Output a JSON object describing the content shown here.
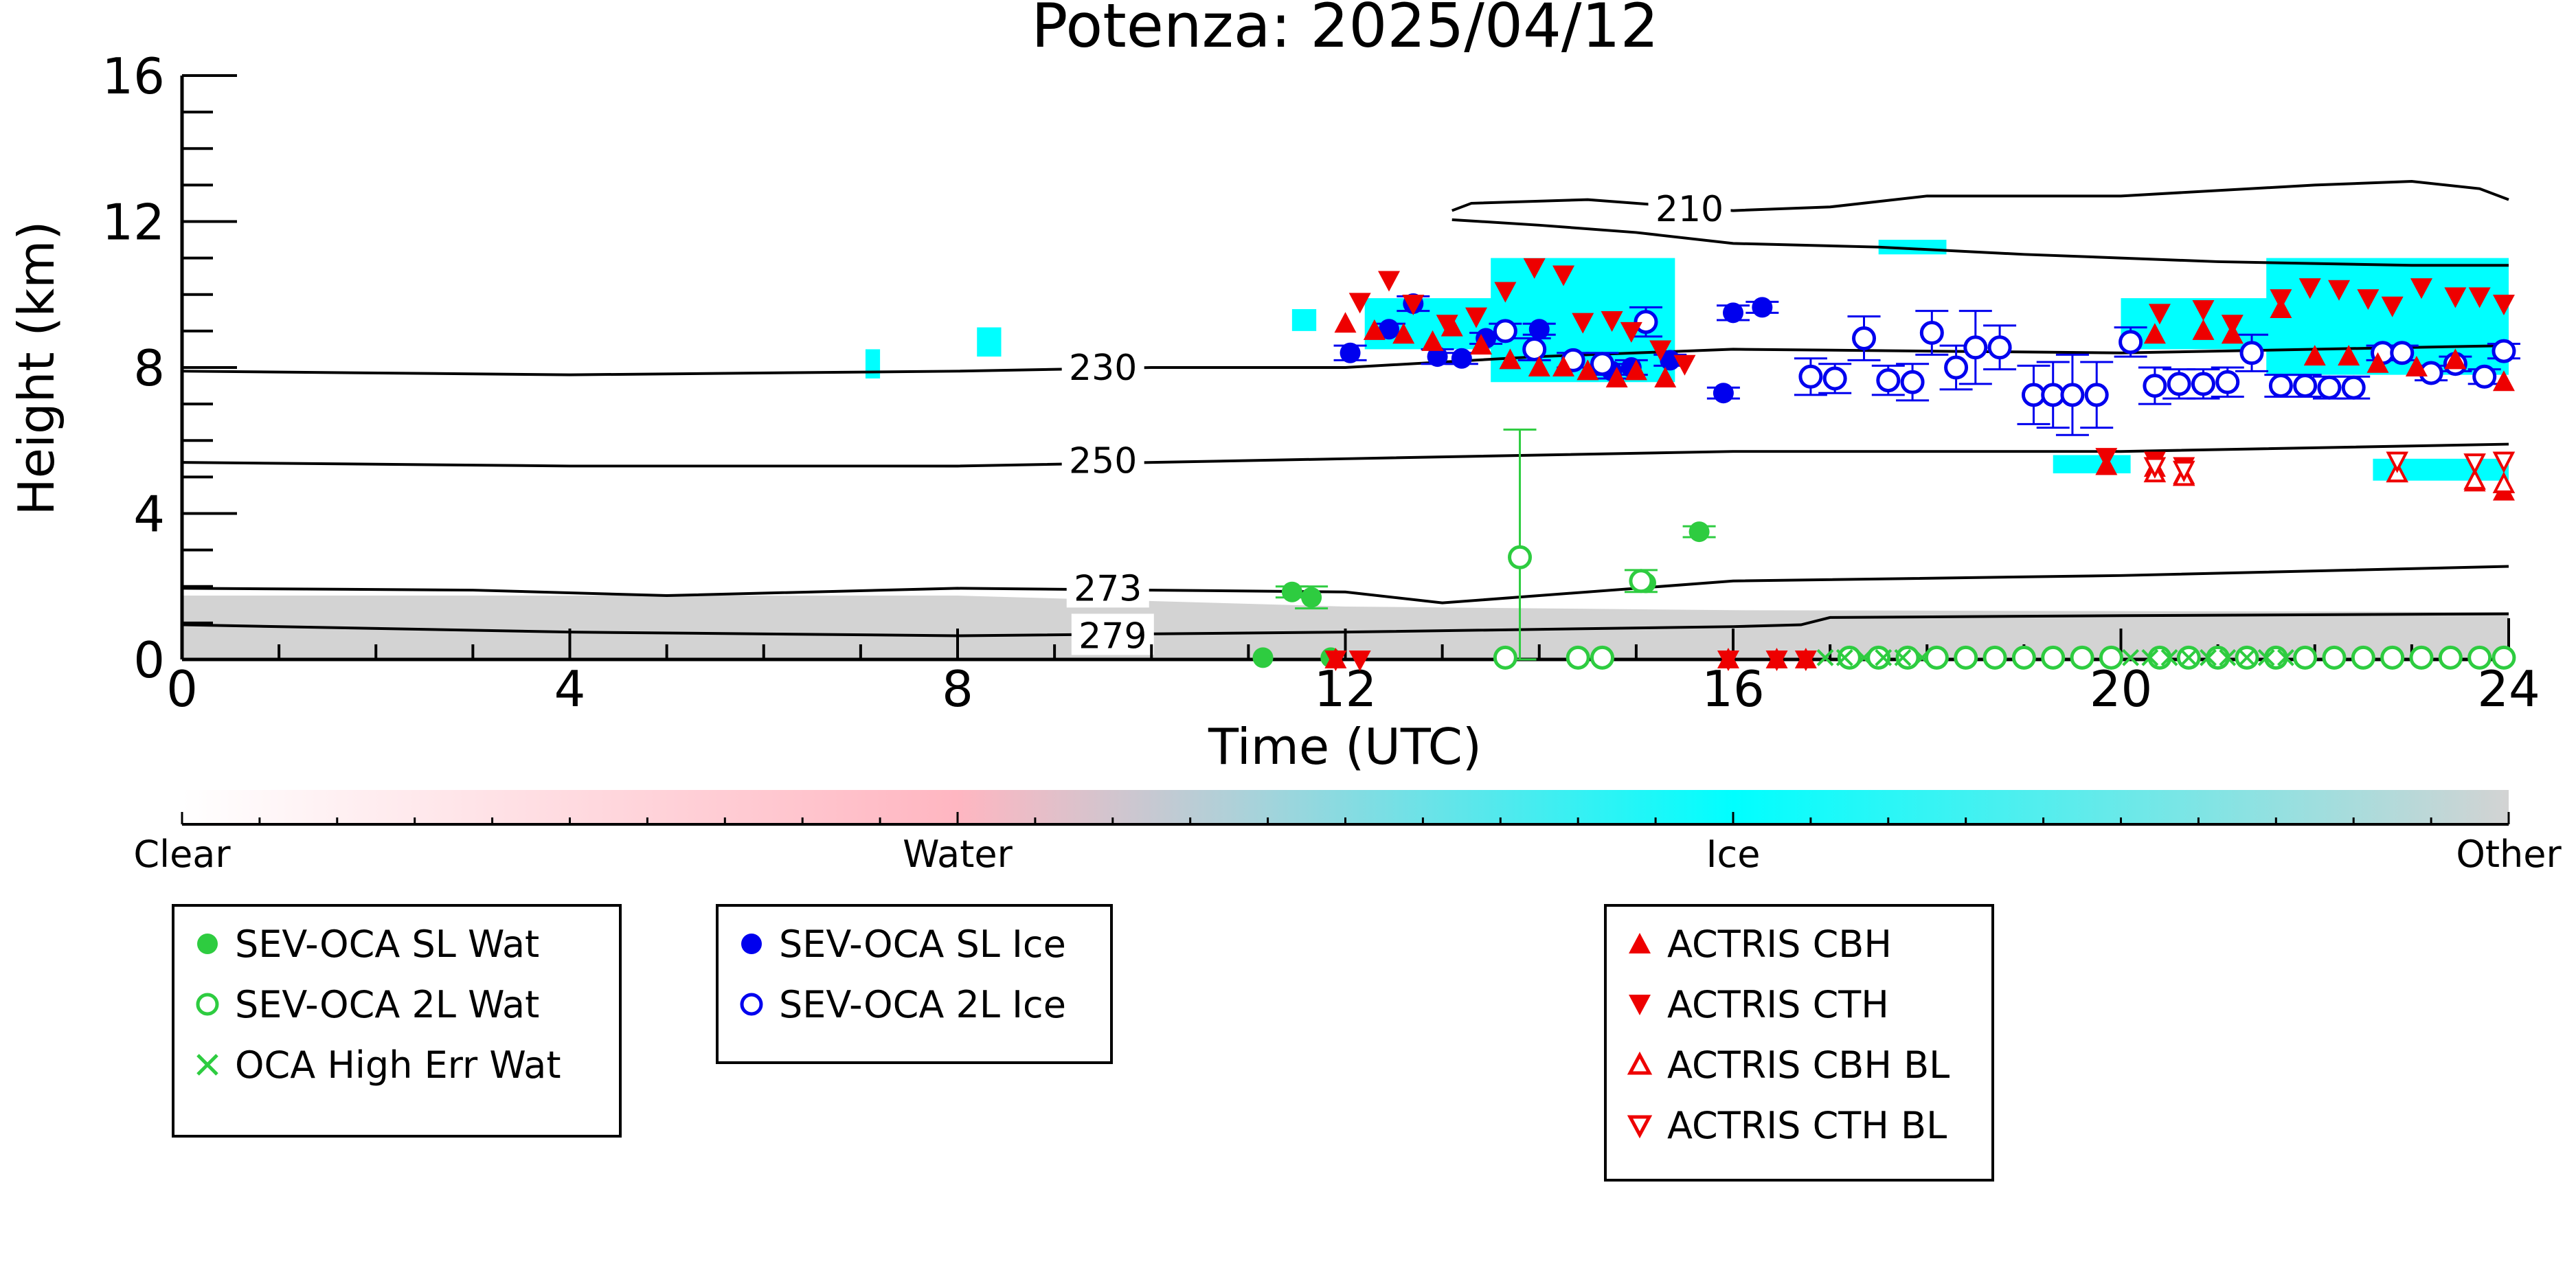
{
  "chart_data": {
    "type": "scatter",
    "title": "Potenza: 2025/04/12",
    "xlabel": "Time (UTC)",
    "ylabel": "Height (km)",
    "xlim": [
      0,
      24
    ],
    "ylim": [
      0,
      16
    ],
    "xticks": [
      0,
      4,
      8,
      12,
      16,
      20,
      24
    ],
    "yticks": [
      0,
      4,
      8,
      12,
      16
    ],
    "colorbar": {
      "labels": [
        "Clear",
        "Water",
        "Ice",
        "Other"
      ],
      "colors": [
        "#ffffff",
        "#ffb6c1",
        "#00ffff",
        "#d3d3d3"
      ]
    },
    "contours": [
      {
        "label": "210",
        "points": [
          [
            13.1,
            12.3
          ],
          [
            13.3,
            12.5
          ],
          [
            14.5,
            12.6
          ],
          [
            16,
            12.3
          ],
          [
            17,
            12.4
          ],
          [
            18,
            12.7
          ],
          [
            20,
            12.7
          ],
          [
            22,
            13.0
          ],
          [
            23,
            13.1
          ],
          [
            23.7,
            12.9
          ],
          [
            24,
            12.6
          ]
        ]
      },
      {
        "label": "210",
        "points": [
          [
            13.1,
            12.05
          ],
          [
            14,
            11.9
          ],
          [
            15,
            11.7
          ],
          [
            16,
            11.4
          ],
          [
            17.5,
            11.3
          ],
          [
            19,
            11.1
          ],
          [
            21,
            10.9
          ],
          [
            23,
            10.8
          ],
          [
            24,
            10.8
          ]
        ]
      },
      {
        "label": "230",
        "points": [
          [
            0,
            7.9
          ],
          [
            4,
            7.8
          ],
          [
            8,
            7.9
          ],
          [
            10,
            8.0
          ],
          [
            12,
            8.0
          ],
          [
            14,
            8.3
          ],
          [
            16,
            8.5
          ],
          [
            20,
            8.4
          ],
          [
            24,
            8.6
          ]
        ]
      },
      {
        "label": "250",
        "points": [
          [
            0,
            5.4
          ],
          [
            4,
            5.3
          ],
          [
            8,
            5.3
          ],
          [
            12,
            5.5
          ],
          [
            16,
            5.7
          ],
          [
            20,
            5.7
          ],
          [
            24,
            5.9
          ]
        ]
      },
      {
        "label": "273",
        "points": [
          [
            0,
            1.95
          ],
          [
            3,
            1.9
          ],
          [
            5,
            1.75
          ],
          [
            8,
            1.95
          ],
          [
            12,
            1.85
          ],
          [
            13,
            1.55
          ],
          [
            14,
            1.75
          ],
          [
            16,
            2.15
          ],
          [
            20,
            2.3
          ],
          [
            24,
            2.55
          ]
        ]
      },
      {
        "label": "279",
        "points": [
          [
            0,
            0.95
          ],
          [
            4,
            0.75
          ],
          [
            8,
            0.65
          ],
          [
            12,
            0.75
          ],
          [
            16,
            0.9
          ],
          [
            16.7,
            0.95
          ],
          [
            17,
            1.15
          ],
          [
            20,
            1.2
          ],
          [
            24,
            1.25
          ]
        ]
      }
    ],
    "series": [
      {
        "name": "SEV-OCA SL Wat",
        "color": "#2ecc40",
        "marker": "filled-circle",
        "points": [
          [
            11.45,
            1.85,
            0.15
          ],
          [
            11.65,
            1.7,
            0.3
          ],
          [
            11.85,
            0.05,
            0
          ],
          [
            11.15,
            0.05,
            0
          ],
          [
            15.1,
            2.1,
            0
          ],
          [
            15.65,
            3.5,
            0.15
          ]
        ]
      },
      {
        "name": "SEV-OCA 2L Wat",
        "color": "#2ecc40",
        "marker": "open-circle",
        "points": [
          [
            13.8,
            2.8,
            3.5
          ],
          [
            15.05,
            2.15,
            0.3
          ],
          [
            13.65,
            0.05,
            0
          ],
          [
            14.4,
            0.05,
            0
          ],
          [
            14.65,
            0.05,
            0
          ],
          [
            17.2,
            0.05,
            0
          ],
          [
            17.5,
            0.05,
            0
          ],
          [
            17.8,
            0.05,
            0
          ],
          [
            18.1,
            0.05,
            0
          ],
          [
            18.4,
            0.05,
            0
          ],
          [
            18.7,
            0.05,
            0
          ],
          [
            19.0,
            0.05,
            0
          ],
          [
            19.3,
            0.05,
            0
          ],
          [
            19.6,
            0.05,
            0
          ],
          [
            19.9,
            0.05,
            0
          ],
          [
            20.4,
            0.05,
            0
          ],
          [
            20.7,
            0.05,
            0
          ],
          [
            21.0,
            0.05,
            0
          ],
          [
            21.3,
            0.05,
            0
          ],
          [
            21.6,
            0.05,
            0
          ],
          [
            21.9,
            0.05,
            0
          ],
          [
            22.2,
            0.05,
            0
          ],
          [
            22.5,
            0.05,
            0
          ],
          [
            22.8,
            0.05,
            0
          ],
          [
            23.1,
            0.05,
            0
          ],
          [
            23.4,
            0.05,
            0
          ],
          [
            23.7,
            0.05,
            0
          ],
          [
            23.95,
            0.05,
            0
          ]
        ]
      },
      {
        "name": "OCA High Err Wat",
        "color": "#2ecc40",
        "marker": "x",
        "points": [
          [
            16.95,
            0.05
          ],
          [
            17.15,
            0.05
          ],
          [
            17.35,
            0.05
          ],
          [
            17.55,
            0.05
          ],
          [
            17.75,
            0.05
          ],
          [
            17.95,
            0.05
          ],
          [
            20.1,
            0.05
          ],
          [
            20.3,
            0.05
          ],
          [
            20.5,
            0.05
          ],
          [
            20.7,
            0.05
          ],
          [
            20.9,
            0.05
          ],
          [
            21.1,
            0.05
          ],
          [
            21.3,
            0.05
          ],
          [
            21.5,
            0.05
          ],
          [
            21.7,
            0.05
          ]
        ]
      },
      {
        "name": "SEV-OCA SL Ice",
        "color": "#0000ee",
        "marker": "filled-circle",
        "points": [
          [
            12.05,
            8.4,
            0.2
          ],
          [
            12.45,
            9.05,
            0.15
          ],
          [
            12.7,
            9.75,
            0.2
          ],
          [
            12.95,
            8.3,
            0.2
          ],
          [
            13.2,
            8.25,
            0.15
          ],
          [
            13.45,
            8.8,
            0.15
          ],
          [
            14.0,
            9.05,
            0.15
          ],
          [
            14.75,
            7.9,
            0.2
          ],
          [
            14.95,
            8.0,
            0.2
          ],
          [
            15.35,
            8.2,
            0.15
          ],
          [
            15.9,
            7.3,
            0.15
          ],
          [
            16.0,
            9.5,
            0.2
          ],
          [
            16.3,
            9.65,
            0.15
          ]
        ]
      },
      {
        "name": "SEV-OCA 2L Ice",
        "color": "#0000ee",
        "marker": "open-circle",
        "points": [
          [
            13.65,
            9.0,
            0.2
          ],
          [
            13.95,
            8.5,
            0.3
          ],
          [
            14.35,
            8.2,
            0.2
          ],
          [
            14.65,
            8.1,
            0.3
          ],
          [
            15.1,
            9.25,
            0.4
          ],
          [
            16.8,
            7.75,
            0.5
          ],
          [
            17.05,
            7.7,
            0.4
          ],
          [
            17.35,
            8.8,
            0.6
          ],
          [
            17.6,
            7.65,
            0.4
          ],
          [
            17.85,
            7.6,
            0.5
          ],
          [
            18.05,
            8.95,
            0.6
          ],
          [
            18.3,
            8.0,
            0.6
          ],
          [
            18.5,
            8.55,
            1.0
          ],
          [
            18.75,
            8.55,
            0.6
          ],
          [
            19.1,
            7.25,
            0.8
          ],
          [
            19.3,
            7.25,
            0.9
          ],
          [
            19.5,
            7.25,
            1.1
          ],
          [
            19.75,
            7.25,
            0.9
          ],
          [
            20.1,
            8.7,
            0.4
          ],
          [
            20.35,
            7.5,
            0.5
          ],
          [
            20.6,
            7.55,
            0.4
          ],
          [
            20.85,
            7.55,
            0.4
          ],
          [
            21.1,
            7.6,
            0.4
          ],
          [
            21.35,
            8.4,
            0.5
          ],
          [
            21.65,
            7.5,
            0.3
          ],
          [
            21.9,
            7.5,
            0.3
          ],
          [
            22.15,
            7.45,
            0.3
          ],
          [
            22.4,
            7.45,
            0.3
          ],
          [
            22.7,
            8.4,
            0.2
          ],
          [
            22.9,
            8.4,
            0.2
          ],
          [
            23.2,
            7.85,
            0.2
          ],
          [
            23.45,
            8.1,
            0.2
          ],
          [
            23.75,
            7.75,
            0.2
          ],
          [
            23.95,
            8.45,
            0.2
          ]
        ]
      },
      {
        "name": "ACTRIS CBH",
        "color": "#ee0000",
        "marker": "triangle-up",
        "points": [
          [
            12.0,
            9.2
          ],
          [
            12.3,
            9.0
          ],
          [
            12.6,
            8.9
          ],
          [
            12.9,
            8.7
          ],
          [
            13.1,
            9.1
          ],
          [
            13.4,
            8.6
          ],
          [
            13.7,
            8.2
          ],
          [
            14.0,
            8.0
          ],
          [
            14.25,
            8.0
          ],
          [
            14.5,
            7.9
          ],
          [
            14.8,
            7.7
          ],
          [
            15.0,
            7.9
          ],
          [
            15.3,
            7.7
          ],
          [
            20.35,
            8.9
          ],
          [
            20.85,
            9.0
          ],
          [
            21.15,
            8.9
          ],
          [
            21.65,
            9.6
          ],
          [
            22.0,
            8.3
          ],
          [
            22.35,
            8.3
          ],
          [
            22.65,
            8.1
          ],
          [
            23.05,
            8.0
          ],
          [
            23.45,
            8.2
          ],
          [
            23.95,
            7.6
          ],
          [
            19.85,
            5.3
          ],
          [
            20.35,
            5.25
          ],
          [
            20.65,
            5.05
          ],
          [
            22.85,
            5.1
          ],
          [
            23.65,
            4.85
          ],
          [
            23.95,
            4.6
          ],
          [
            11.9,
            0.0
          ],
          [
            15.95,
            0.0
          ],
          [
            16.45,
            0.0
          ],
          [
            16.75,
            0.0
          ]
        ]
      },
      {
        "name": "ACTRIS CTH",
        "color": "#ee0000",
        "marker": "triangle-down",
        "points": [
          [
            12.15,
            9.8
          ],
          [
            12.45,
            10.4
          ],
          [
            12.7,
            9.75
          ],
          [
            13.05,
            9.2
          ],
          [
            13.35,
            9.4
          ],
          [
            13.65,
            10.1
          ],
          [
            13.95,
            10.75
          ],
          [
            14.25,
            10.55
          ],
          [
            14.45,
            9.25
          ],
          [
            14.75,
            9.3
          ],
          [
            14.95,
            9.0
          ],
          [
            15.25,
            8.5
          ],
          [
            15.5,
            8.1
          ],
          [
            20.4,
            9.5
          ],
          [
            20.85,
            9.6
          ],
          [
            21.15,
            9.2
          ],
          [
            21.65,
            9.9
          ],
          [
            21.95,
            10.2
          ],
          [
            22.25,
            10.15
          ],
          [
            22.55,
            9.9
          ],
          [
            22.8,
            9.7
          ],
          [
            23.1,
            10.2
          ],
          [
            23.45,
            9.95
          ],
          [
            23.7,
            9.95
          ],
          [
            23.95,
            9.75
          ],
          [
            19.85,
            5.55
          ],
          [
            20.35,
            5.45
          ],
          [
            20.65,
            5.3
          ],
          [
            11.9,
            0.0
          ],
          [
            12.15,
            0.0
          ],
          [
            15.95,
            0.0
          ],
          [
            16.45,
            0.0
          ],
          [
            16.75,
            0.0
          ]
        ]
      },
      {
        "name": "ACTRIS CBH BL",
        "color": "#ee0000",
        "marker": "open-triangle-up",
        "points": [
          [
            20.35,
            5.1
          ],
          [
            20.65,
            5.0
          ],
          [
            22.85,
            5.1
          ],
          [
            23.65,
            4.9
          ],
          [
            23.95,
            4.8
          ]
        ]
      },
      {
        "name": "ACTRIS CTH BL",
        "color": "#ee0000",
        "marker": "open-triangle-down",
        "points": [
          [
            20.35,
            5.3
          ],
          [
            20.65,
            5.2
          ],
          [
            22.85,
            5.45
          ],
          [
            23.65,
            5.4
          ],
          [
            23.95,
            5.45
          ]
        ]
      }
    ],
    "legends": [
      [
        "SEV-OCA SL Wat",
        "SEV-OCA 2L Wat",
        "OCA High Err Wat"
      ],
      [
        "SEV-OCA SL Ice",
        "SEV-OCA 2L Ice"
      ],
      [
        "ACTRIS CBH",
        "ACTRIS CTH",
        "ACTRIS CBH BL",
        "ACTRIS CTH BL"
      ]
    ]
  }
}
